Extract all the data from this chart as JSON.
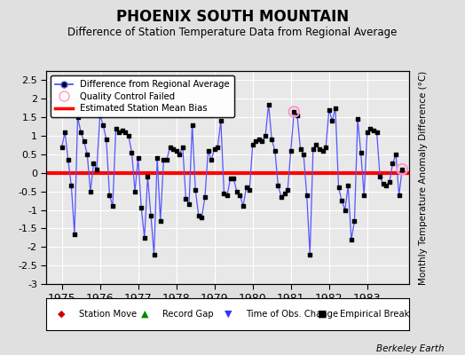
{
  "title": "PHOENIX SOUTH MOUNTAIN",
  "subtitle": "Difference of Station Temperature Data from Regional Average",
  "ylabel": "Monthly Temperature Anomaly Difference (°C)",
  "xlabel_years": [
    1975,
    1976,
    1977,
    1978,
    1979,
    1980,
    1981,
    1982,
    1983
  ],
  "bias": 0.0,
  "ylim": [
    -3,
    2.75
  ],
  "yticks": [
    -3,
    -2.5,
    -2,
    -1.5,
    -1,
    -0.5,
    0,
    0.5,
    1,
    1.5,
    2,
    2.5
  ],
  "background_color": "#e0e0e0",
  "plot_bg_color": "#e8e8e8",
  "line_color": "#5555ff",
  "marker_color": "#000000",
  "bias_color": "#ff0000",
  "qc_color": "#ff99cc",
  "watermark": "Berkeley Earth",
  "series": [
    0.7,
    1.1,
    0.35,
    -0.35,
    -1.65,
    1.5,
    1.1,
    0.85,
    0.5,
    -0.5,
    0.25,
    0.1,
    1.55,
    1.3,
    0.9,
    -0.6,
    -0.9,
    1.2,
    1.1,
    1.15,
    1.1,
    1.0,
    0.55,
    -0.5,
    0.4,
    -0.95,
    -1.75,
    -0.1,
    -1.15,
    -2.2,
    0.4,
    -1.3,
    0.35,
    0.35,
    0.7,
    0.65,
    0.6,
    0.5,
    0.7,
    -0.7,
    -0.85,
    1.3,
    -0.45,
    -1.15,
    -1.2,
    -0.65,
    0.6,
    0.35,
    0.65,
    0.7,
    1.4,
    -0.55,
    -0.6,
    -0.15,
    -0.15,
    -0.5,
    -0.6,
    -0.9,
    -0.4,
    -0.45,
    0.75,
    0.85,
    0.9,
    0.85,
    1.0,
    1.85,
    0.9,
    0.6,
    -0.35,
    -0.65,
    -0.55,
    -0.45,
    0.6,
    1.65,
    1.55,
    0.65,
    0.5,
    -0.6,
    -2.2,
    0.65,
    0.75,
    0.65,
    0.6,
    0.7,
    1.7,
    1.4,
    1.75,
    -0.4,
    -0.75,
    -1.0,
    -0.35,
    -1.8,
    -1.3,
    1.45,
    0.55,
    -0.6,
    1.1,
    1.2,
    1.15,
    1.1,
    -0.1,
    -0.3,
    -0.35,
    -0.25,
    0.25,
    0.5,
    -0.6,
    0.1
  ],
  "qc_failed_indices": [
    73,
    107
  ],
  "start_year": 1975,
  "start_month": 1,
  "n_points": 108
}
